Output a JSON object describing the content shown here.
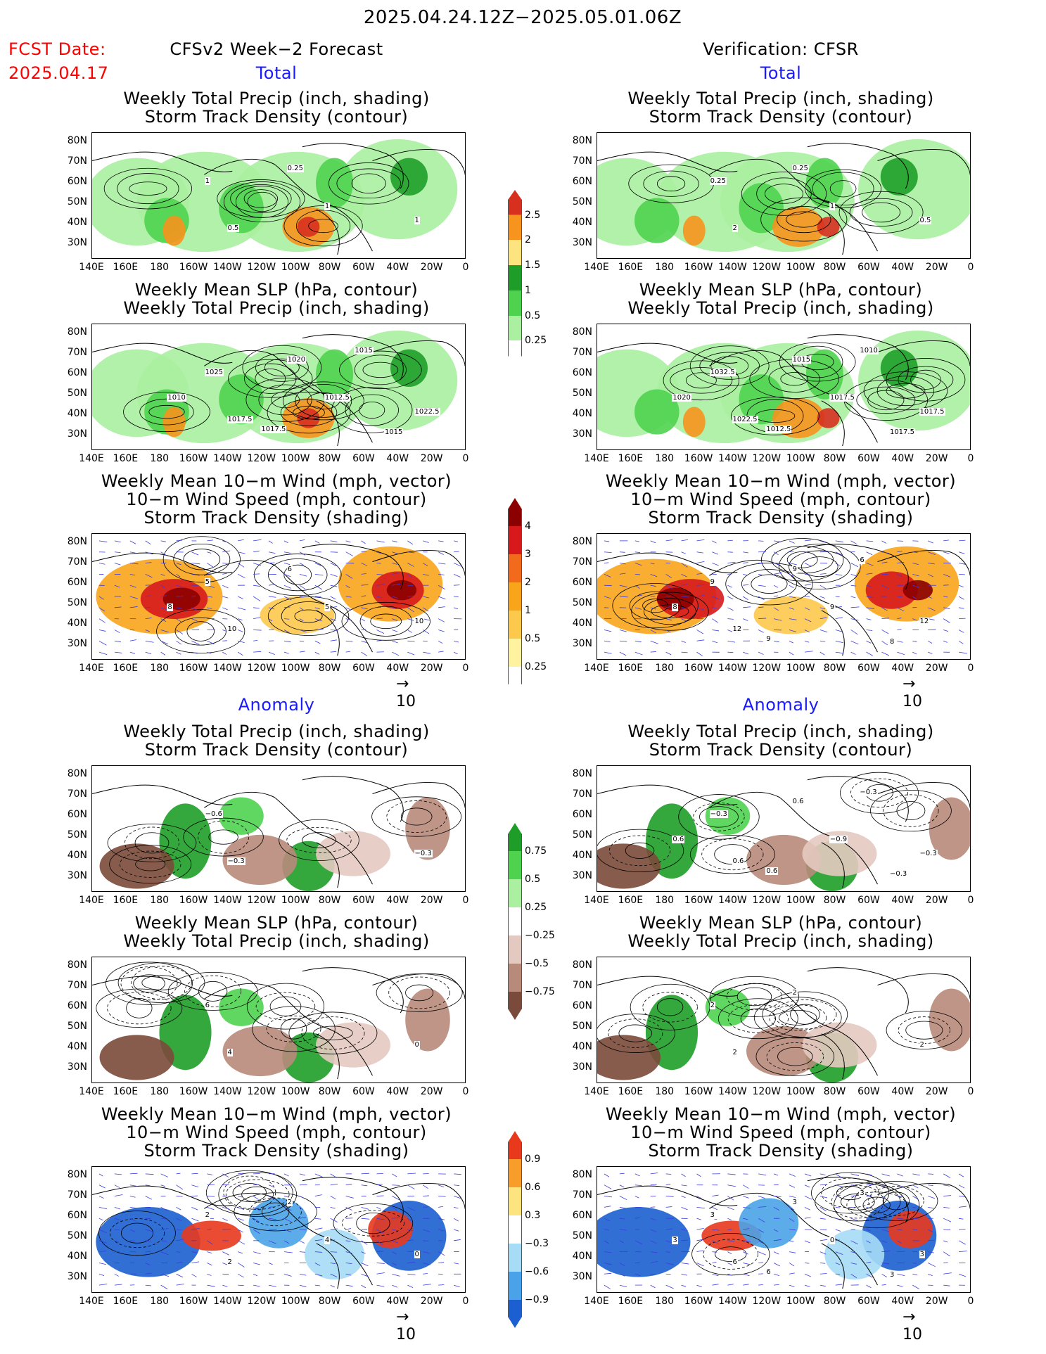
{
  "header": {
    "date_range": "2025.04.24.12Z−2025.05.01.06Z",
    "fcst_label": "FCST Date:",
    "fcst_date": "2025.04.17",
    "left_title": "CFSv2 Week−2 Forecast",
    "right_title": "Verification: CFSR"
  },
  "sections": {
    "total": "Total",
    "anomaly": "Anomaly"
  },
  "panels": {
    "precip_track": [
      "Weekly Total Precip (inch, shading)",
      "Storm Track Density (contour)"
    ],
    "slp_precip": [
      "Weekly Mean SLP (hPa, contour)",
      "Weekly Total Precip (inch, shading)"
    ],
    "wind_track": [
      "Weekly Mean 10−m Wind (mph, vector)",
      "10−m Wind Speed (mph, contour)",
      "Storm Track Density (shading)"
    ]
  },
  "axes": {
    "lat": [
      "80N",
      "70N",
      "60N",
      "50N",
      "40N",
      "30N"
    ],
    "lon": [
      "140E",
      "160E",
      "180",
      "160W",
      "140W",
      "120W",
      "100W",
      "80W",
      "60W",
      "40W",
      "20W",
      "0"
    ]
  },
  "vector_ref": "10",
  "colorbars": {
    "precip_total": {
      "labels": [
        "2.5",
        "2",
        "1.5",
        "1",
        "0.5",
        "0.25"
      ],
      "colors": [
        "#d7301f",
        "#f7941d",
        "#fde47f",
        "#1e9e28",
        "#4fd34f",
        "#aaf0a0",
        "#ffffff"
      ]
    },
    "track_total": {
      "labels": [
        "4",
        "3",
        "2",
        "1",
        "0.5",
        "0.25"
      ],
      "colors": [
        "#8b0000",
        "#d7191c",
        "#f26b1d",
        "#f8a51c",
        "#fdc94c",
        "#fff3a0",
        "#ffffff"
      ]
    },
    "precip_anom": {
      "labels": [
        "0.75",
        "0.5",
        "0.25",
        "−0.25",
        "−0.5",
        "−0.75"
      ],
      "colors": [
        "#1e9e28",
        "#4fd34f",
        "#aaf0a0",
        "#ffffff",
        "#e4c9c0",
        "#b78a7a",
        "#7a4a3a"
      ]
    },
    "track_anom": {
      "labels": [
        "0.9",
        "0.6",
        "0.3",
        "−0.3",
        "−0.6",
        "−0.9"
      ],
      "colors": [
        "#e8391d",
        "#f89d2a",
        "#fde47f",
        "#ffffff",
        "#a6dcf5",
        "#4aa3e8",
        "#1c5fd0"
      ]
    }
  },
  "map_labels": {
    "fc_precip_total": [
      "1",
      "0.5",
      "1",
      "0.25",
      "1"
    ],
    "fc_slp_total": [
      "1025",
      "1017.5",
      "1022.5",
      "1020",
      "1012.5",
      "1010",
      "1015",
      "1017.5",
      "1015"
    ],
    "fc_wind_total": [
      "5",
      "10",
      "10",
      "6",
      "5",
      "8"
    ],
    "fc_precip_anom": [
      "−0.6",
      "−0.3",
      "−0.3"
    ],
    "fc_slp_anom": [
      "6",
      "4",
      "0"
    ],
    "fc_wind_anom": [
      "2",
      "2",
      "0",
      "2",
      "4"
    ],
    "vf_precip_total": [
      "0.25",
      "2",
      "0.5",
      "0.25",
      "1"
    ],
    "vf_slp_total": [
      "1032.5",
      "1022.5",
      "1017.5",
      "1015",
      "1017.5",
      "1020",
      "1010",
      "1012.5",
      "1017.5"
    ],
    "vf_wind_total": [
      "9",
      "12",
      "12",
      "9",
      "9",
      "8",
      "6",
      "9",
      "8"
    ],
    "vf_precip_anom": [
      "−0.3",
      "0.6",
      "−0.3",
      "0.6",
      "−0.9",
      "0.6",
      "−0.3",
      "0.6",
      "−0.3"
    ],
    "vf_slp_anom": [
      "2",
      "2",
      "2",
      "2"
    ],
    "vf_wind_anom": [
      "3",
      "6",
      "3",
      "3",
      "0",
      "3",
      "3",
      "6",
      "3"
    ]
  }
}
